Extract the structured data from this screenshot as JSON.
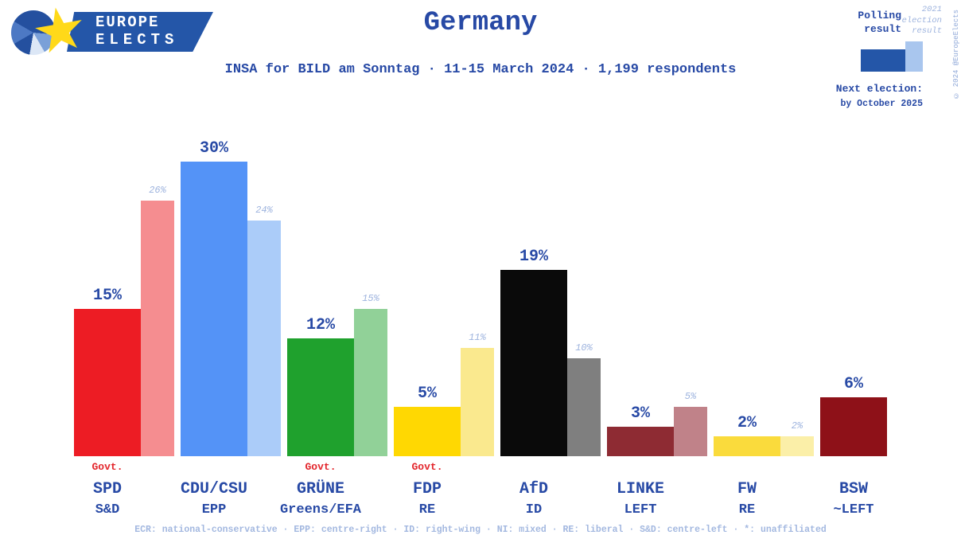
{
  "logo": {
    "line1": "EUROPE",
    "line2": "ELECTS"
  },
  "legend": {
    "polling_label": "Polling result",
    "election_label": "2021 election result",
    "next_election_label": "Next election:",
    "next_election_value": "by October 2025",
    "copyright": "© 2024 @EuropeElects"
  },
  "footer": {
    "text": "ECR: national-conservative · EPP: centre-right · ID: right-wing · NI: mixed · RE: liberal · S&D: centre-left · *: unaffiliated"
  },
  "chart_data": {
    "type": "bar",
    "title": "Germany",
    "subtitle": "INSA for BILD am Sonntag · 11-15 March 2024 · 1,199 respondents",
    "ylim": [
      0,
      30
    ],
    "grid": false,
    "legend_position": "top-right",
    "series_names": [
      "Polling result",
      "2021 election result"
    ],
    "categories": [
      "SPD",
      "CDU/CSU",
      "GRÜNE",
      "FDP",
      "AfD",
      "LINKE",
      "FW",
      "BSW"
    ],
    "series": [
      {
        "name": "Polling result",
        "values": [
          15,
          30,
          12,
          5,
          19,
          3,
          2,
          6
        ]
      },
      {
        "name": "2021 election result",
        "values": [
          26,
          24,
          15,
          11,
          10,
          5,
          2,
          null
        ]
      }
    ],
    "govt_label": "Govt.",
    "parties": [
      {
        "name": "SPD",
        "group": "S&D",
        "poll": 15,
        "poll_label": "15%",
        "election": 26,
        "election_label": "26%",
        "govt": true,
        "color": "#ed1c24",
        "election_color": "#f58d90"
      },
      {
        "name": "CDU/CSU",
        "group": "EPP",
        "poll": 30,
        "poll_label": "30%",
        "election": 24,
        "election_label": "24%",
        "govt": false,
        "color": "#5493f7",
        "election_color": "#abccf9"
      },
      {
        "name": "GRÜNE",
        "group": "Greens/EFA",
        "poll": 12,
        "poll_label": "12%",
        "election": 15,
        "election_label": "15%",
        "govt": true,
        "color": "#1fa12d",
        "election_color": "#91d198"
      },
      {
        "name": "FDP",
        "group": "RE",
        "poll": 5,
        "poll_label": "5%",
        "election": 11,
        "election_label": "11%",
        "govt": true,
        "color": "#ffd802",
        "election_color": "#fae98e"
      },
      {
        "name": "AfD",
        "group": "ID",
        "poll": 19,
        "poll_label": "19%",
        "election": 10,
        "election_label": "10%",
        "govt": false,
        "color": "#0a0a0a",
        "election_color": "#7f7f7f"
      },
      {
        "name": "LINKE",
        "group": "LEFT",
        "poll": 3,
        "poll_label": "3%",
        "election": 5,
        "election_label": "5%",
        "govt": false,
        "color": "#8e2b33",
        "election_color": "#c08289"
      },
      {
        "name": "FW",
        "group": "RE",
        "poll": 2,
        "poll_label": "2%",
        "election": 2,
        "election_label": "2%",
        "govt": false,
        "color": "#fadb3c",
        "election_color": "#fbefa8"
      },
      {
        "name": "BSW",
        "group": "~LEFT",
        "poll": 6,
        "poll_label": "6%",
        "election": null,
        "election_label": null,
        "govt": false,
        "color": "#8e1118",
        "election_color": null
      }
    ]
  }
}
